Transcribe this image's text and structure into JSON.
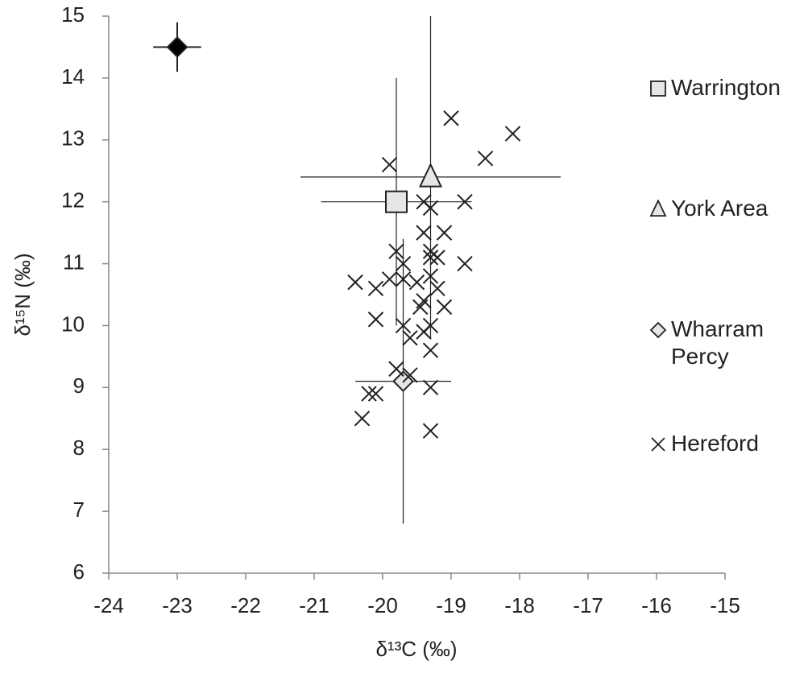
{
  "chart_data": {
    "type": "scatter",
    "xlabel": "δ¹³C (‰)",
    "ylabel": "δ¹⁵N (‰)",
    "xlim": [
      -24,
      -15
    ],
    "xticks": [
      -24,
      -23,
      -22,
      -21,
      -20,
      -19,
      -18,
      -17,
      -16,
      -15
    ],
    "ylim": [
      6,
      15
    ],
    "yticks": [
      6,
      7,
      8,
      9,
      10,
      11,
      12,
      13,
      14,
      15
    ],
    "legend": "right",
    "series": [
      {
        "marker": "diamond",
        "color": "#000000",
        "x": [
          -23.0
        ],
        "y": [
          14.5
        ],
        "xerr": [
          0.35
        ],
        "yerr": [
          0.4
        ]
      },
      {
        "name": "Warrington",
        "marker": "square",
        "color": "#e6e6e6",
        "x": [
          -19.8
        ],
        "y": [
          12.0
        ],
        "xerr": [
          1.1
        ],
        "yerr": [
          2.0
        ]
      },
      {
        "name": "York Area",
        "marker": "triangle",
        "color": "#e6e6e6",
        "x": [
          -19.3
        ],
        "y": [
          12.4
        ],
        "xerr": [
          1.9
        ],
        "yerr": [
          2.6
        ]
      },
      {
        "name": "Wharram Percy",
        "marker": "diamond",
        "color": "#e6e6e6",
        "x": [
          -19.7
        ],
        "y": [
          9.1
        ],
        "xerr": [
          0.7
        ],
        "yerr": [
          2.3
        ]
      },
      {
        "name": "Hereford",
        "marker": "cross",
        "color": "#222222",
        "x": [
          -19.0,
          -18.1,
          -18.5,
          -19.9,
          -19.4,
          -18.8,
          -19.3,
          -19.1,
          -19.4,
          -19.3,
          -19.3,
          -19.2,
          -19.8,
          -18.8,
          -19.7,
          -20.4,
          -19.9,
          -19.7,
          -20.1,
          -19.5,
          -19.2,
          -19.3,
          -19.4,
          -19.45,
          -19.1,
          -20.1,
          -19.7,
          -19.3,
          -19.6,
          -19.4,
          -19.3,
          -19.8,
          -19.6,
          -19.3,
          -20.2,
          -20.1,
          -20.3,
          -19.3
        ],
        "y": [
          13.35,
          13.1,
          12.7,
          12.6,
          12.0,
          12.0,
          11.9,
          11.5,
          11.5,
          11.2,
          11.1,
          11.1,
          11.2,
          11.0,
          11.0,
          10.7,
          10.75,
          10.75,
          10.6,
          10.7,
          10.6,
          10.8,
          10.4,
          10.3,
          10.3,
          10.1,
          10.0,
          10.0,
          9.8,
          9.9,
          9.6,
          9.3,
          9.2,
          9.0,
          8.9,
          8.9,
          8.5,
          8.3
        ]
      }
    ]
  }
}
